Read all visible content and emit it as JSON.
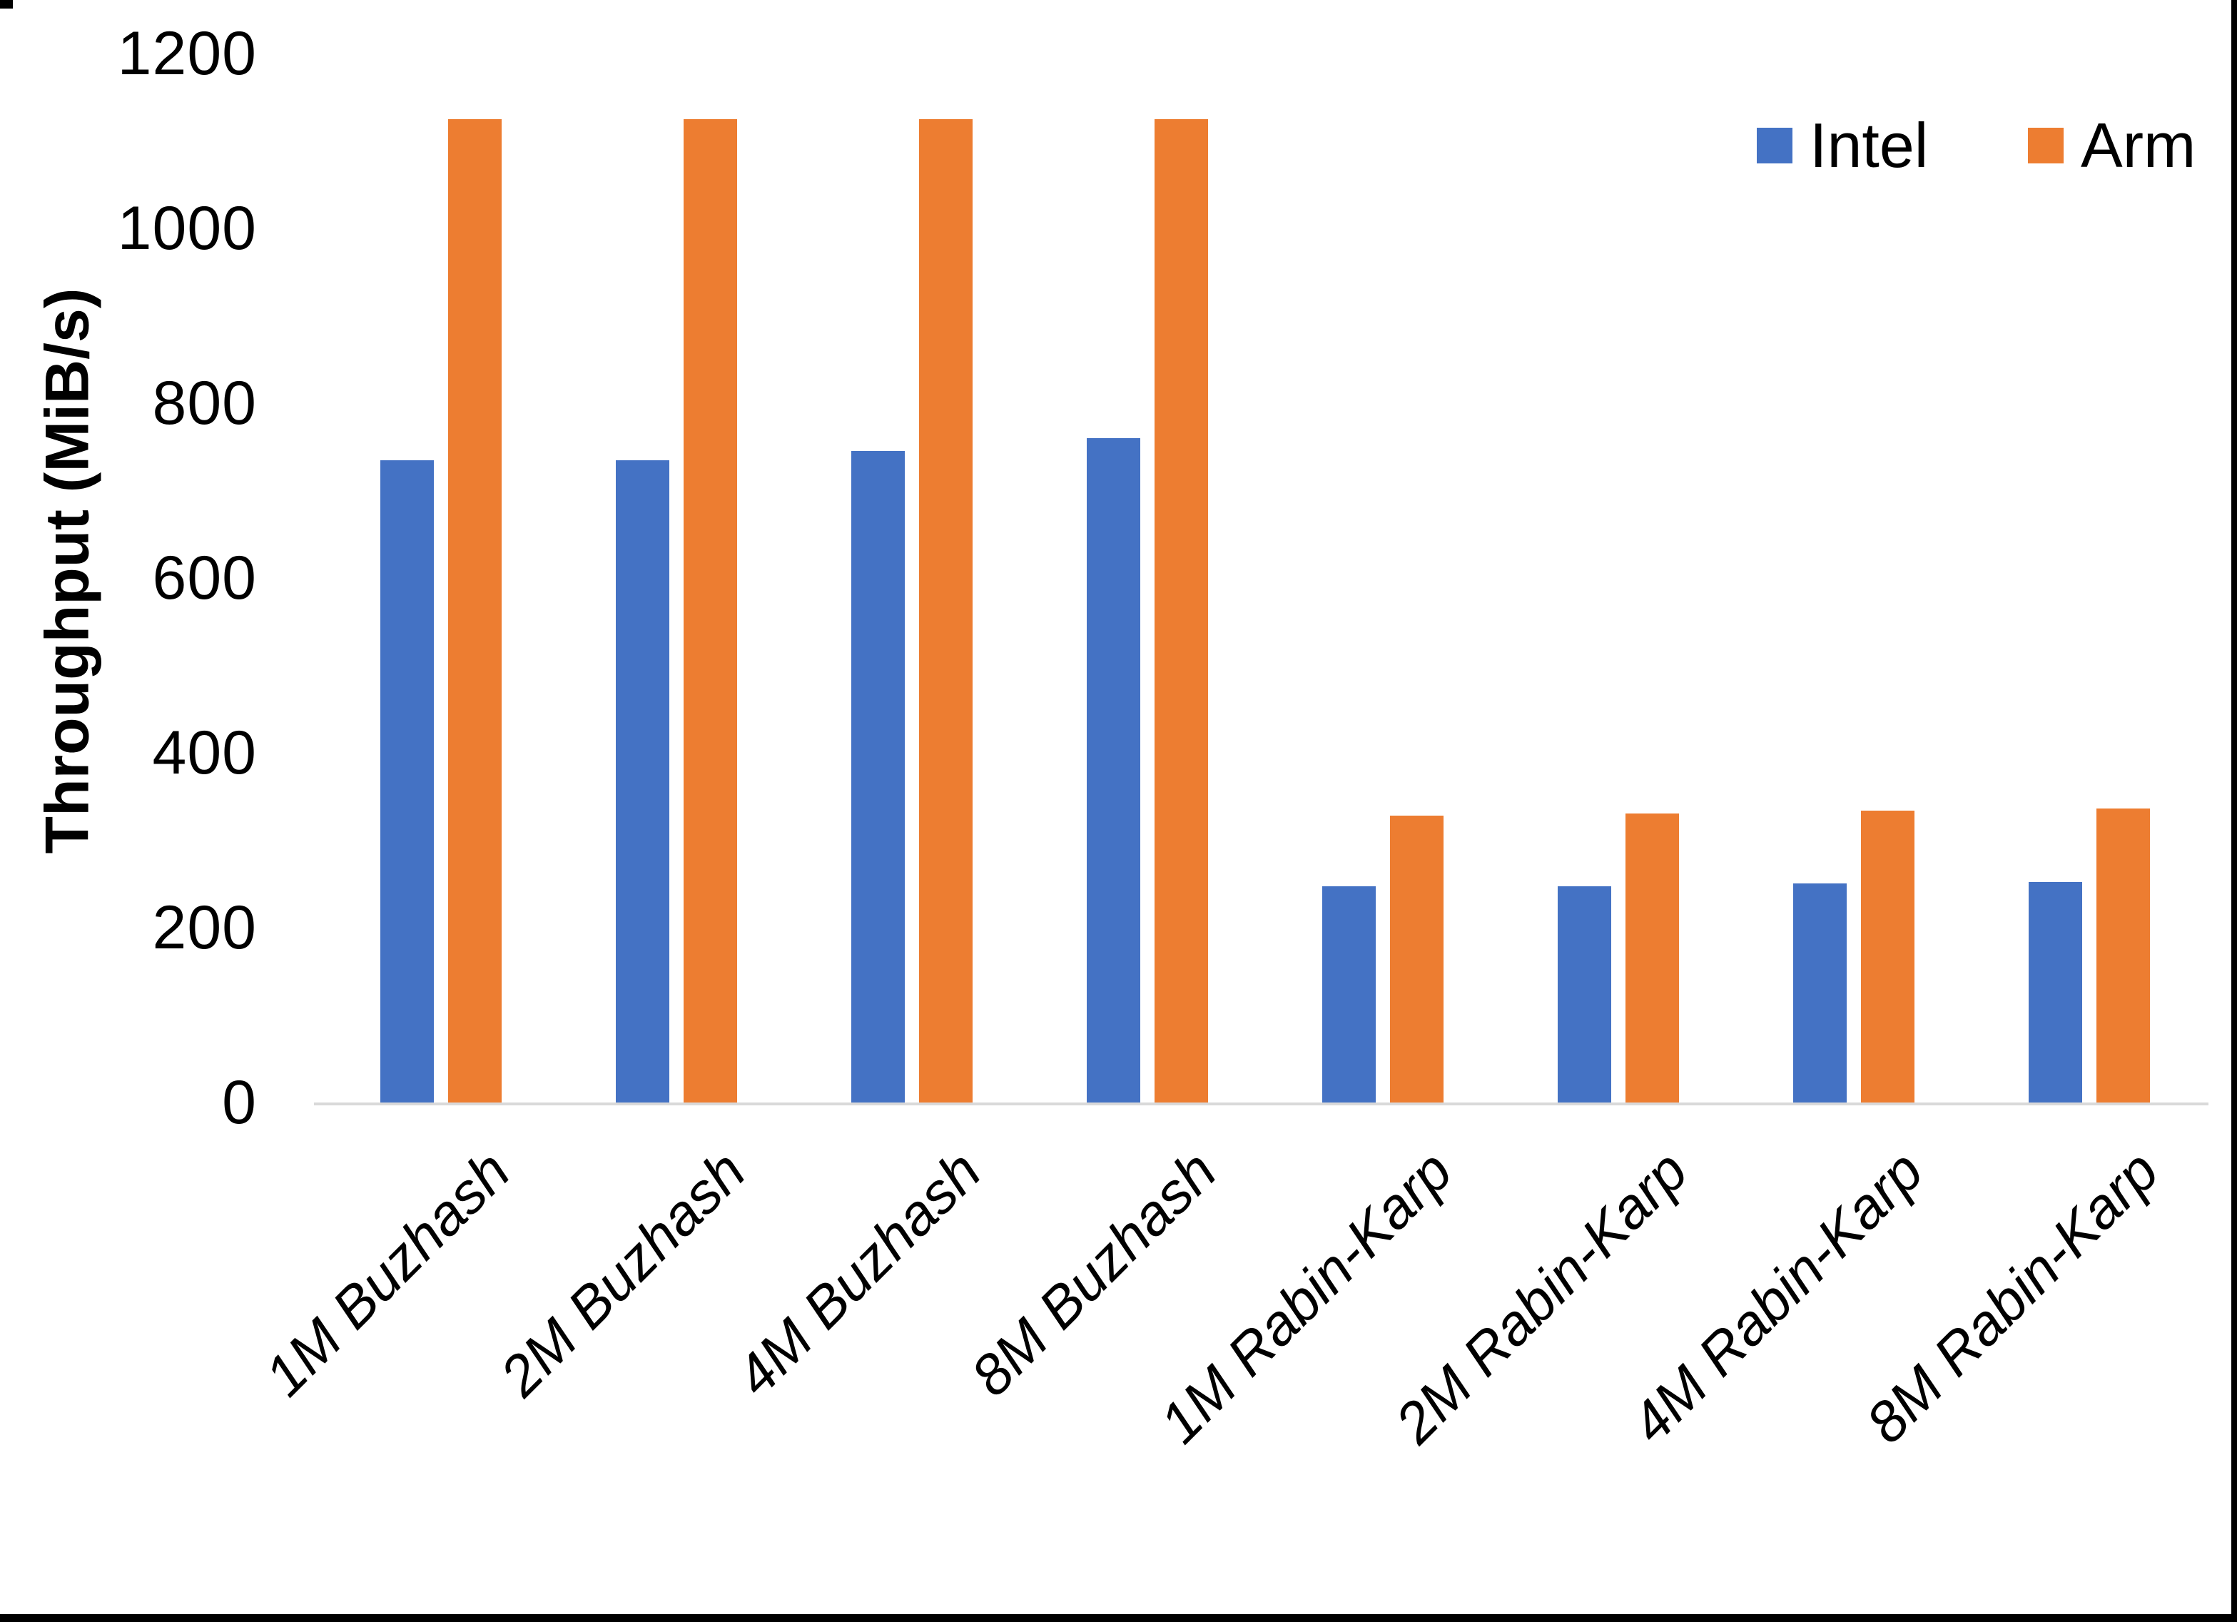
{
  "page": {
    "background": "#ffffff",
    "frame_color": "#000000",
    "axis_line_color": "#d9d9d9"
  },
  "legend": {
    "items": [
      {
        "label": "Intel",
        "color": "#4472c4"
      },
      {
        "label": "Arm",
        "color": "#ed7d31"
      }
    ]
  },
  "chart_data": {
    "type": "bar",
    "title": "",
    "ylabel": "Throughput (MiB/s)",
    "xlabel": "",
    "ylim": [
      0,
      1200
    ],
    "yticks": [
      0,
      200,
      400,
      600,
      800,
      1000,
      1200
    ],
    "grid": false,
    "legend_position": "top-right",
    "categories": [
      "1M Buzhash",
      "2M Buzhash",
      "4M Buzhash",
      "8M Buzhash",
      "1M Rabin-Karp",
      "2M Rabin-Karp",
      "4M Rabin-Karp",
      "8M Rabin-Karp"
    ],
    "series": [
      {
        "name": "Intel",
        "color": "#4472c4",
        "values": [
          735,
          735,
          745,
          760,
          247,
          247,
          251,
          252
        ]
      },
      {
        "name": "Arm",
        "color": "#ed7d31",
        "values": [
          1125,
          1125,
          1125,
          1125,
          328,
          331,
          334,
          336
        ]
      }
    ]
  }
}
